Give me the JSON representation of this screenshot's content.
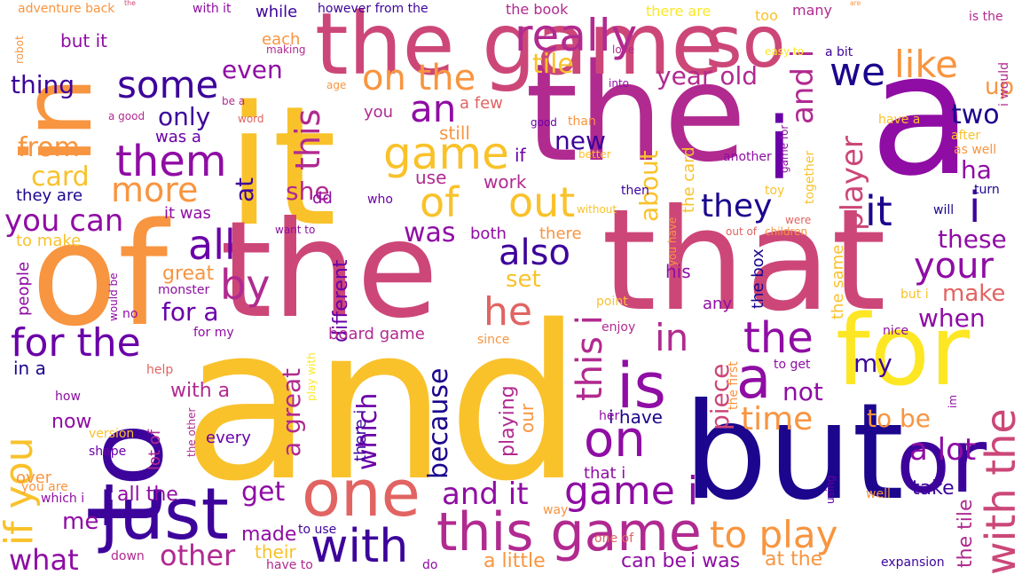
{
  "palette": {
    "yellow": "#fde725",
    "gold": "#f9c22b",
    "orange": "#f89540",
    "salmon": "#e16462",
    "rose": "#cc4778",
    "magenta": "#b12a90",
    "purple": "#8f0da4",
    "violet": "#6a00a8",
    "indigo": "#3d049b",
    "navy": "#1b068d"
  },
  "words": [
    {
      "text": "and",
      "color": "gold"
    },
    {
      "text": "the",
      "color": "magenta"
    },
    {
      "text": "it",
      "color": "gold"
    },
    {
      "text": "a",
      "color": "purple"
    },
    {
      "text": "of",
      "color": "orange"
    },
    {
      "text": "that",
      "color": "rose"
    },
    {
      "text": "the",
      "color": "rose"
    },
    {
      "text": "to",
      "color": "indigo"
    },
    {
      "text": "but",
      "color": "navy"
    },
    {
      "text": "in",
      "color": "orange"
    },
    {
      "text": "the",
      "color": "rose"
    },
    {
      "text": "for",
      "color": "yellow"
    },
    {
      "text": "the game",
      "color": "rose"
    },
    {
      "text": "the",
      "color": "magenta"
    },
    {
      "text": "are",
      "color": "orange"
    },
    {
      "text": "so",
      "color": "rose"
    },
    {
      "text": "really",
      "color": "magenta"
    },
    {
      "text": "one",
      "color": "salmon"
    },
    {
      "text": "or",
      "color": "indigo"
    },
    {
      "text": "just",
      "color": "indigo"
    },
    {
      "text": "this game",
      "color": "magenta"
    },
    {
      "text": "with",
      "color": "indigo"
    },
    {
      "text": "is",
      "color": "purple"
    },
    {
      "text": "a",
      "color": "purple"
    },
    {
      "text": "with the",
      "color": "rose"
    },
    {
      "text": "i",
      "color": "violet"
    },
    {
      "text": "on",
      "color": "purple"
    },
    {
      "text": "if you",
      "color": "gold"
    },
    {
      "text": "to play",
      "color": "orange"
    },
    {
      "text": "game i",
      "color": "purple"
    },
    {
      "text": "on the",
      "color": "orange"
    },
    {
      "text": "an",
      "color": "purple"
    },
    {
      "text": "game",
      "color": "gold"
    },
    {
      "text": "of",
      "color": "gold"
    },
    {
      "text": "out",
      "color": "gold"
    },
    {
      "text": "some",
      "color": "indigo"
    },
    {
      "text": "them",
      "color": "purple"
    },
    {
      "text": "more",
      "color": "orange"
    },
    {
      "text": "all",
      "color": "violet"
    },
    {
      "text": "by",
      "color": "magenta"
    },
    {
      "text": "for the",
      "color": "violet"
    },
    {
      "text": "you can",
      "color": "purple"
    },
    {
      "text": "he",
      "color": "salmon"
    },
    {
      "text": "also",
      "color": "indigo"
    },
    {
      "text": "in",
      "color": "magenta"
    },
    {
      "text": "the",
      "color": "purple"
    },
    {
      "text": "it",
      "color": "navy"
    },
    {
      "text": "i",
      "color": "indigo"
    },
    {
      "text": "your",
      "color": "purple"
    },
    {
      "text": "like",
      "color": "orange"
    },
    {
      "text": "we",
      "color": "navy"
    },
    {
      "text": "player",
      "color": "rose"
    },
    {
      "text": "year old",
      "color": "magenta"
    },
    {
      "text": "this",
      "color": "magenta"
    },
    {
      "text": "this i",
      "color": "magenta"
    },
    {
      "text": "and i",
      "color": "magenta"
    },
    {
      "text": "they",
      "color": "navy"
    },
    {
      "text": "time",
      "color": "orange"
    },
    {
      "text": "a lot",
      "color": "purple"
    },
    {
      "text": "get",
      "color": "purple"
    },
    {
      "text": "and it",
      "color": "purple"
    },
    {
      "text": "other",
      "color": "magenta"
    },
    {
      "text": "what",
      "color": "purple"
    },
    {
      "text": "me",
      "color": "purple"
    },
    {
      "text": "because",
      "color": "navy"
    },
    {
      "text": "which",
      "color": "violet"
    },
    {
      "text": "a great",
      "color": "magenta"
    },
    {
      "text": "about",
      "color": "gold"
    },
    {
      "text": "piece",
      "color": "rose"
    },
    {
      "text": "when",
      "color": "purple"
    },
    {
      "text": "make",
      "color": "salmon"
    },
    {
      "text": "these",
      "color": "purple"
    },
    {
      "text": "ha",
      "color": "purple"
    },
    {
      "text": "two",
      "color": "navy"
    },
    {
      "text": "up",
      "color": "orange"
    },
    {
      "text": "tile",
      "color": "gold"
    },
    {
      "text": "card",
      "color": "gold"
    },
    {
      "text": "from",
      "color": "orange"
    },
    {
      "text": "thing",
      "color": "indigo"
    },
    {
      "text": "even",
      "color": "purple"
    },
    {
      "text": "only",
      "color": "indigo"
    },
    {
      "text": "new",
      "color": "indigo"
    },
    {
      "text": "was",
      "color": "purple"
    },
    {
      "text": "she",
      "color": "magenta"
    },
    {
      "text": "at",
      "color": "indigo"
    },
    {
      "text": "for a",
      "color": "violet"
    },
    {
      "text": "set",
      "color": "gold"
    },
    {
      "text": "my",
      "color": "indigo"
    },
    {
      "text": "not",
      "color": "purple"
    },
    {
      "text": "to be",
      "color": "orange"
    },
    {
      "text": "take",
      "color": "indigo"
    },
    {
      "text": "the tile",
      "color": "magenta"
    },
    {
      "text": "at the",
      "color": "orange"
    },
    {
      "text": "can be",
      "color": "purple"
    },
    {
      "text": "i was",
      "color": "purple"
    },
    {
      "text": "a little",
      "color": "orange"
    },
    {
      "text": "made",
      "color": "purple"
    },
    {
      "text": "their",
      "color": "gold"
    },
    {
      "text": "all the",
      "color": "purple"
    },
    {
      "text": "in a",
      "color": "navy"
    },
    {
      "text": "now",
      "color": "purple"
    },
    {
      "text": "with a",
      "color": "magenta"
    },
    {
      "text": "great",
      "color": "orange"
    },
    {
      "text": "different",
      "color": "violet"
    },
    {
      "text": "board game",
      "color": "magenta"
    },
    {
      "text": "playing",
      "color": "magenta"
    },
    {
      "text": "our",
      "color": "orange"
    },
    {
      "text": "i have",
      "color": "navy"
    },
    {
      "text": "that i",
      "color": "purple"
    },
    {
      "text": "there i",
      "color": "indigo"
    },
    {
      "text": "every",
      "color": "violet"
    },
    {
      "text": "lot of",
      "color": "magenta"
    },
    {
      "text": "they are",
      "color": "navy"
    },
    {
      "text": "to make",
      "color": "gold"
    },
    {
      "text": "people",
      "color": "purple"
    },
    {
      "text": "both",
      "color": "purple"
    },
    {
      "text": "there",
      "color": "orange"
    },
    {
      "text": "it was",
      "color": "purple"
    },
    {
      "text": "dd",
      "color": "purple"
    },
    {
      "text": "still",
      "color": "orange"
    },
    {
      "text": "work",
      "color": "magenta"
    },
    {
      "text": "use",
      "color": "magenta"
    },
    {
      "text": "if",
      "color": "violet"
    },
    {
      "text": "was a",
      "color": "violet"
    },
    {
      "text": "you",
      "color": "magenta"
    },
    {
      "text": "a few",
      "color": "salmon"
    },
    {
      "text": "each",
      "color": "orange"
    },
    {
      "text": "but it",
      "color": "purple"
    },
    {
      "text": "while",
      "color": "indigo"
    },
    {
      "text": "however from the",
      "color": "indigo"
    },
    {
      "text": "with it",
      "color": "purple"
    },
    {
      "text": "adventure back",
      "color": "orange"
    },
    {
      "text": "the book",
      "color": "magenta"
    },
    {
      "text": "there are",
      "color": "yellow"
    },
    {
      "text": "too",
      "color": "gold"
    },
    {
      "text": "many",
      "color": "magenta"
    },
    {
      "text": "is the",
      "color": "magenta"
    },
    {
      "text": "i would",
      "color": "magenta"
    },
    {
      "text": "a bit",
      "color": "indigo"
    },
    {
      "text": "easy to",
      "color": "yellow"
    },
    {
      "text": "love",
      "color": "magenta"
    },
    {
      "text": "into",
      "color": "purple"
    },
    {
      "text": "than",
      "color": "orange"
    },
    {
      "text": "good",
      "color": "violet"
    },
    {
      "text": "better",
      "color": "gold"
    },
    {
      "text": "making",
      "color": "magenta"
    },
    {
      "text": "age",
      "color": "orange"
    },
    {
      "text": "word",
      "color": "salmon"
    },
    {
      "text": "be a",
      "color": "magenta"
    },
    {
      "text": "a good",
      "color": "magenta"
    },
    {
      "text": "robot",
      "color": "orange"
    },
    {
      "text": "the card",
      "color": "gold"
    },
    {
      "text": "game for",
      "color": "purple"
    },
    {
      "text": "together",
      "color": "gold"
    },
    {
      "text": "another",
      "color": "purple"
    },
    {
      "text": "have a",
      "color": "gold"
    },
    {
      "text": "after",
      "color": "gold"
    },
    {
      "text": "as well",
      "color": "orange"
    },
    {
      "text": "turn",
      "color": "navy"
    },
    {
      "text": "will",
      "color": "navy"
    },
    {
      "text": "toy",
      "color": "gold"
    },
    {
      "text": "then",
      "color": "indigo"
    },
    {
      "text": "without",
      "color": "gold"
    },
    {
      "text": "who",
      "color": "violet"
    },
    {
      "text": "you have",
      "color": "orange"
    },
    {
      "text": "were",
      "color": "salmon"
    },
    {
      "text": "children",
      "color": "orange"
    },
    {
      "text": "out of",
      "color": "salmon"
    },
    {
      "text": "want to",
      "color": "purple"
    },
    {
      "text": "would be",
      "color": "purple"
    },
    {
      "text": "monster",
      "color": "purple"
    },
    {
      "text": "no",
      "color": "purple"
    },
    {
      "text": "point",
      "color": "gold"
    },
    {
      "text": "enjoy",
      "color": "magenta"
    },
    {
      "text": "since",
      "color": "orange"
    },
    {
      "text": "his",
      "color": "purple"
    },
    {
      "text": "any",
      "color": "purple"
    },
    {
      "text": "the box",
      "color": "navy"
    },
    {
      "text": "the same",
      "color": "gold"
    },
    {
      "text": "but i",
      "color": "gold"
    },
    {
      "text": "nice",
      "color": "purple"
    },
    {
      "text": "for my",
      "color": "purple"
    },
    {
      "text": "help",
      "color": "salmon"
    },
    {
      "text": "how",
      "color": "purple"
    },
    {
      "text": "play with",
      "color": "yellow"
    },
    {
      "text": "version",
      "color": "gold"
    },
    {
      "text": "the other",
      "color": "magenta"
    },
    {
      "text": "shape",
      "color": "violet"
    },
    {
      "text": "over",
      "color": "orange"
    },
    {
      "text": "you are",
      "color": "orange"
    },
    {
      "text": "which i",
      "color": "purple"
    },
    {
      "text": "to get",
      "color": "purple"
    },
    {
      "text": "the first",
      "color": "orange"
    },
    {
      "text": "her",
      "color": "purple"
    },
    {
      "text": "im",
      "color": "purple"
    },
    {
      "text": "using",
      "color": "violet"
    },
    {
      "text": "well",
      "color": "orange"
    },
    {
      "text": "way",
      "color": "orange"
    },
    {
      "text": "one of",
      "color": "salmon"
    },
    {
      "text": "expansion",
      "color": "indigo"
    },
    {
      "text": "to use",
      "color": "indigo"
    },
    {
      "text": "have to",
      "color": "magenta"
    },
    {
      "text": "down",
      "color": "magenta"
    },
    {
      "text": "do",
      "color": "purple"
    }
  ]
}
